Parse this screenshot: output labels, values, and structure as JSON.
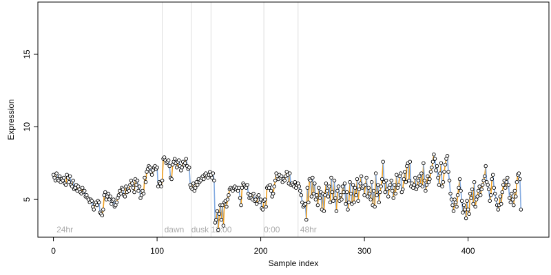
{
  "chart_data": {
    "type": "scatter",
    "title": "",
    "xlabel": "Sample index",
    "ylabel": "Expression",
    "xlim": [
      -15,
      478
    ],
    "ylim": [
      2.4,
      18.6
    ],
    "x_ticks": [
      0,
      100,
      200,
      300,
      400
    ],
    "y_ticks": [
      5,
      10,
      15
    ],
    "grid": false,
    "colors": {
      "points_fill": "#ffffff",
      "points_stroke": "#000000",
      "up_segment": "#f0a020",
      "down_segment": "#7fa8e0",
      "divider": "#dddddd",
      "annotation": "#aaaaaa"
    },
    "dividers": [
      105,
      133,
      152,
      203,
      236
    ],
    "annotations": [
      {
        "label": "24hr",
        "x": 3
      },
      {
        "label": "dawn",
        "x": 107
      },
      {
        "label": "dusk",
        "x": 133
      },
      {
        "label": "12:00",
        "x": 152
      },
      {
        "label": "0:00",
        "x": 203
      },
      {
        "label": "48hr",
        "x": 238
      }
    ],
    "series": [
      {
        "values": [
          6.7,
          6.5,
          6.3,
          6.8,
          6.4,
          6.3,
          6.6,
          6.2,
          6.4,
          6.3,
          6.5,
          6.1,
          6.0,
          6.7,
          6.5,
          6.2,
          6.6,
          6.0,
          5.9,
          6.3,
          5.7,
          5.8,
          6.0,
          5.6,
          5.9,
          5.7,
          5.5,
          5.4,
          5.8,
          5.5,
          5.6,
          5.2,
          5.3,
          5.1,
          5.0,
          4.8,
          5.0,
          4.9,
          4.5,
          4.3,
          4.7,
          4.8,
          4.6,
          4.9,
          4.8,
          4.1,
          4.0,
          3.9,
          4.3,
          5.3,
          5.5,
          5.0,
          5.2,
          5.4,
          5.0,
          5.2,
          4.7,
          4.9,
          5.0,
          4.5,
          4.6,
          4.8,
          5.1,
          5.3,
          5.6,
          5.4,
          5.8,
          5.7,
          5.3,
          5.2,
          5.9,
          5.5,
          5.7,
          5.6,
          6.0,
          6.3,
          6.1,
          5.8,
          5.5,
          6.4,
          6.0,
          6.3,
          5.6,
          5.9,
          5.1,
          5.3,
          5.6,
          5.4,
          6.5,
          6.2,
          6.9,
          7.1,
          7.3,
          7.2,
          6.9,
          6.7,
          7.0,
          7.2,
          7.3,
          7.1,
          7.2,
          5.9,
          6.2,
          6.1,
          5.9,
          6.3,
          7.8,
          7.9,
          7.7,
          7.5,
          7.6,
          7.7,
          7.3,
          6.5,
          6.4,
          7.4,
          7.6,
          7.8,
          7.5,
          7.2,
          7.6,
          7.7,
          7.3,
          7.0,
          7.2,
          7.6,
          7.4,
          7.5,
          7.8,
          7.3,
          7.1,
          7.2,
          6.0,
          5.8,
          5.7,
          6.1,
          5.6,
          5.8,
          6.2,
          6.0,
          6.4,
          6.2,
          6.3,
          6.5,
          6.6,
          6.4,
          6.7,
          6.8,
          6.6,
          6.5,
          6.7,
          6.9,
          6.7,
          6.5,
          6.8,
          6.3,
          3.4,
          3.6,
          4.2,
          2.9,
          4.0,
          4.6,
          3.6,
          4.6,
          3.2,
          4.8,
          4.9,
          4.5,
          5.0,
          5.3,
          5.7,
          5.8,
          5.7,
          5.6,
          5.8,
          5.9,
          5.7,
          5.8,
          5.6,
          5.8,
          5.1,
          4.6,
          5.8,
          6.1,
          6.0,
          5.9,
          5.8,
          6.0,
          5.4,
          5.1,
          5.3,
          5.1,
          5.0,
          5.4,
          4.9,
          5.0,
          4.7,
          5.2,
          5.3,
          4.8,
          5.0,
          4.4,
          4.3,
          4.9,
          5.0,
          4.5,
          5.8,
          5.9,
          5.8,
          6.0,
          5.6,
          5.2,
          5.4,
          5.9,
          6.3,
          6.8,
          6.6,
          6.4,
          6.7,
          6.5,
          6.6,
          6.2,
          6.4,
          6.3,
          6.6,
          6.9,
          6.7,
          6.1,
          6.8,
          6.0,
          6.1,
          6.0,
          5.9,
          6.2,
          5.8,
          6.0,
          6.1,
          5.9,
          5.6,
          5.3,
          4.8,
          4.5,
          4.6,
          4.7,
          3.6,
          5.8,
          4.8,
          6.4,
          6.3,
          5.2,
          6.5,
          5.4,
          6.1,
          5.0,
          5.3,
          4.6,
          5.8,
          5.1,
          5.5,
          4.3,
          5.4,
          4.2,
          5.3,
          6.1,
          5.6,
          5.2,
          5.9,
          4.8,
          6.5,
          5.5,
          4.9,
          6.3,
          5.1,
          4.2,
          5.6,
          5.9,
          4.9,
          5.3,
          5.0,
          5.9,
          5.5,
          6.1,
          4.7,
          5.5,
          4.3,
          4.8,
          6.2,
          5.4,
          4.7,
          6.0,
          4.8,
          5.8,
          5.3,
          6.4,
          4.9,
          5.7,
          6.1,
          6.6,
          5.8,
          5.9,
          5.3,
          6.0,
          6.5,
          5.2,
          5.8,
          5.4,
          5.0,
          6.2,
          4.6,
          5.6,
          4.5,
          6.8,
          5.3,
          6.0,
          4.8,
          5.5,
          5.9,
          6.4,
          7.6,
          6.2,
          5.5,
          6.3,
          5.7,
          5.2,
          5.8,
          6.0,
          6.3,
          5.6,
          5.1,
          6.0,
          5.4,
          6.7,
          5.8,
          6.0,
          6.6,
          6.8,
          5.5,
          5.7,
          6.4,
          6.9,
          6.2,
          7.3,
          7.5,
          6.3,
          7.6,
          5.9,
          6.1,
          5.8,
          6.0,
          6.5,
          5.7,
          5.9,
          6.3,
          6.6,
          6.0,
          6.8,
          5.9,
          7.5,
          6.3,
          5.6,
          6.0,
          6.6,
          6.2,
          6.4,
          6.9,
          7.2,
          7.6,
          8.1,
          7.8,
          7.0,
          7.3,
          6.5,
          6.0,
          6.8,
          7.5,
          5.9,
          6.2,
          6.9,
          7.4,
          7.8,
          8.0,
          6.9,
          6.3,
          5.4,
          5.0,
          4.6,
          4.2,
          5.0,
          4.8,
          4.5,
          5.3,
          5.8,
          6.4,
          5.6,
          4.9,
          4.1,
          4.6,
          4.3,
          3.7,
          4.9,
          4.3,
          4.0,
          5.4,
          5.1,
          5.7,
          4.7,
          6.2,
          4.5,
          5.0,
          5.2,
          5.6,
          5.9,
          5.3,
          5.7,
          6.0,
          6.3,
          6.6,
          7.3,
          6.2,
          6.0,
          5.7,
          4.9,
          5.3,
          6.4,
          6.7,
          5.8,
          5.4,
          5.0,
          4.6,
          4.3,
          4.6,
          5.2,
          4.7,
          5.5,
          6.0,
          6.3,
          5.8,
          6.2,
          6.5,
          6.0,
          5.1,
          4.8,
          5.4,
          5.0,
          4.6,
          5.6,
          5.2,
          6.2,
          6.7,
          6.8,
          6.4,
          4.3
        ]
      }
    ]
  }
}
